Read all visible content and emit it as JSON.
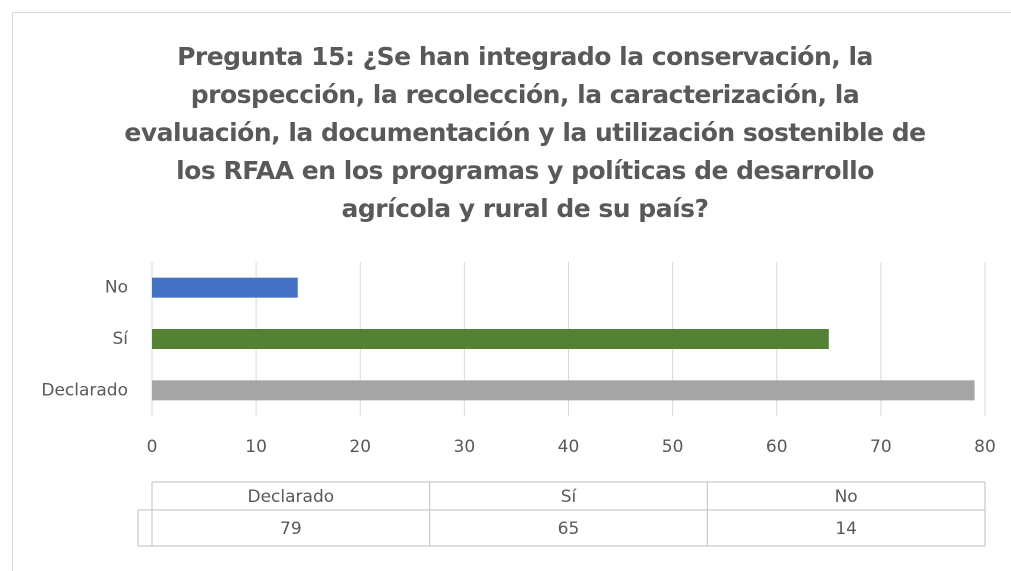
{
  "chart_data": {
    "type": "bar",
    "orientation": "horizontal",
    "title": "Pregunta 15: ¿Se han integrado la conservación, la prospección, la recolección, la caracterización, la evaluación, la documentación y la utilización sostenible de los RFAA en los programas y políticas de desarrollo agrícola y rural de su país?",
    "categories": [
      "Declarado",
      "Sí",
      "No"
    ],
    "values": [
      79,
      65,
      14
    ],
    "colors": [
      "#a5a5a5",
      "#548235",
      "#4472c4"
    ],
    "xlim": [
      0,
      80
    ],
    "xticks": [
      0,
      10,
      20,
      30,
      40,
      50,
      60,
      70,
      80
    ],
    "grid": true
  }
}
